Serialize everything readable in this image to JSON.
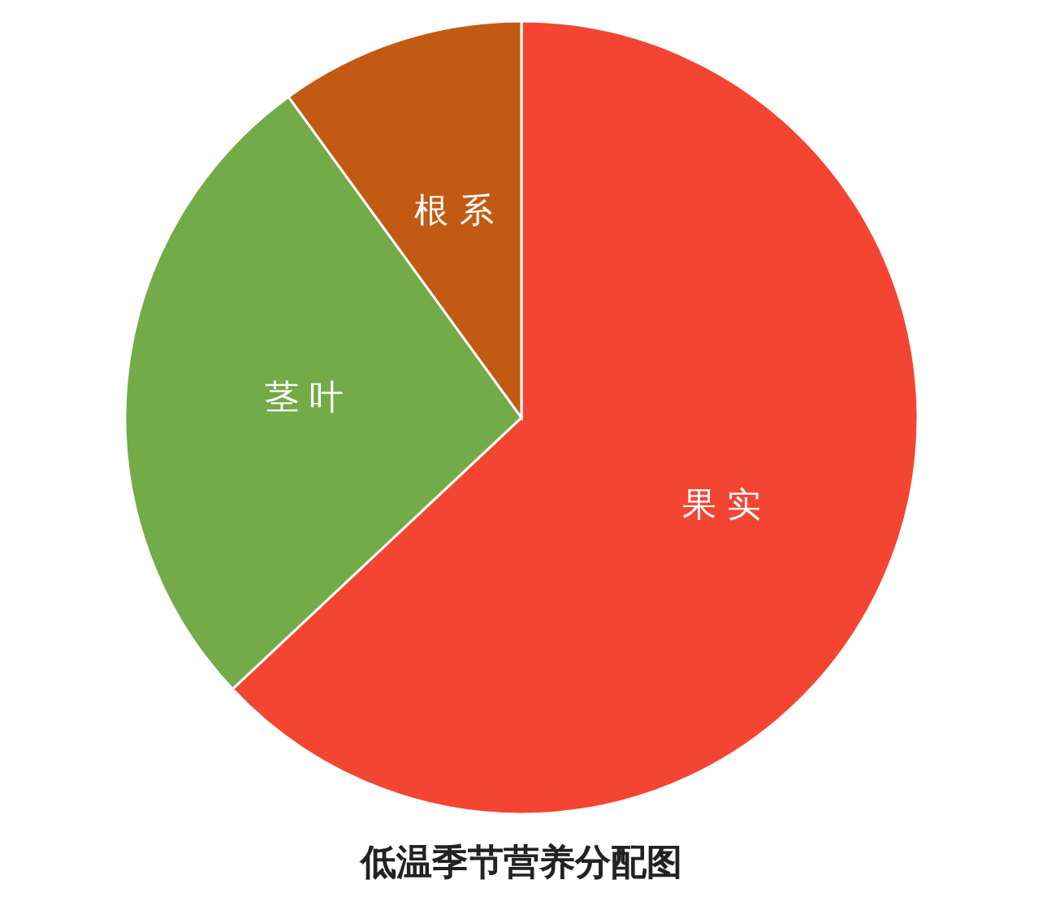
{
  "chart_data": {
    "type": "pie",
    "title": "低温季节营养分配图",
    "categories": [
      "果 实",
      "茎 叶",
      "根 系"
    ],
    "values": [
      63,
      27,
      10
    ],
    "colors": [
      "#f44532",
      "#72ab48",
      "#c35a13"
    ]
  }
}
